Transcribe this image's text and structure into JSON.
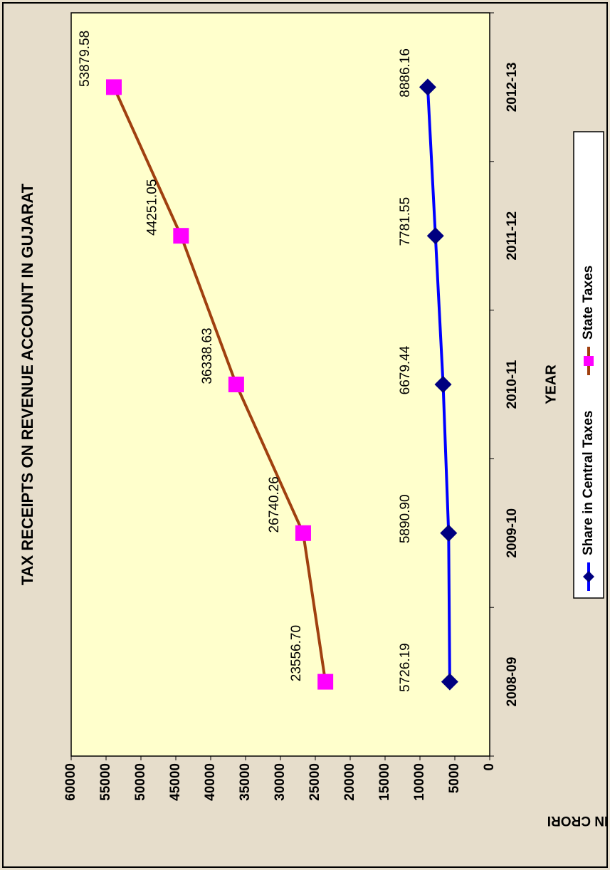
{
  "chart_data": {
    "type": "line",
    "title": "TAX RECEIPTS ON REVENUE ACCOUNT IN  GUJARAT",
    "x_label": "YEAR",
    "y_label": "RS. IN CRORI",
    "categories": [
      "2008-09",
      "2009-10",
      "2010-11",
      "2011-12",
      "2012-13"
    ],
    "series": [
      {
        "name": "Share in  Central Taxes",
        "color": "#0000ff",
        "marker_color": "#000080",
        "marker": "diamond",
        "values": [
          5726.19,
          5890.9,
          6679.44,
          7781.55,
          8886.16
        ],
        "value_labels": [
          "5726.19",
          "5890.90",
          "6679.44",
          "7781.55",
          "8886.16"
        ]
      },
      {
        "name": "State Taxes",
        "color": "#a0400f",
        "marker_color": "#ff00ff",
        "marker": "square",
        "values": [
          23556.7,
          26740.26,
          36338.63,
          44251.05,
          53879.58
        ],
        "value_labels": [
          "23556.70",
          "26740.26",
          "36338.63",
          "44251.05",
          "53879.58"
        ]
      }
    ],
    "ylim": [
      0,
      60000
    ],
    "yticks": [
      0,
      5000,
      10000,
      15000,
      20000,
      25000,
      30000,
      35000,
      40000,
      45000,
      50000,
      55000,
      60000
    ],
    "legend": "bottom"
  }
}
